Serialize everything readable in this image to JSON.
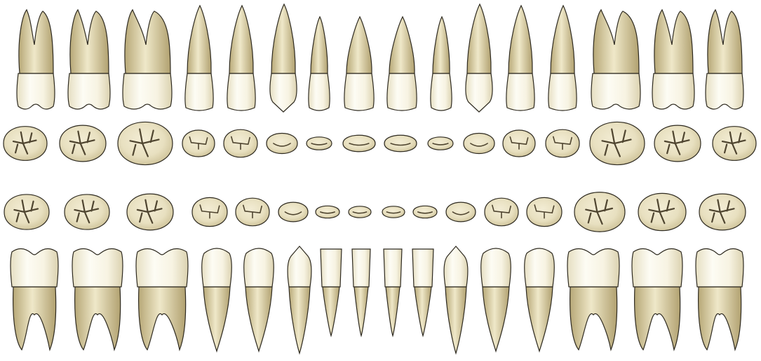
{
  "colors": {
    "background": "#ffffff",
    "enamel_light": "#fdfcf4",
    "enamel_mid": "#f1ecd6",
    "enamel_dark": "#dcd2ad",
    "root_light": "#eee6c6",
    "root_dark": "#b9a97a",
    "outline": "#2e2a20",
    "fissure": "#4f4530"
  },
  "chart_data": {
    "type": "diagram",
    "title": "",
    "rows": [
      {
        "name": "maxillary-buccal",
        "count": 16,
        "teeth": [
          "molar",
          "molar",
          "molar",
          "premolar",
          "premolar",
          "canine",
          "incisor-lateral",
          "incisor-central",
          "incisor-central",
          "incisor-lateral",
          "canine",
          "premolar",
          "premolar",
          "molar",
          "molar",
          "molar"
        ]
      },
      {
        "name": "maxillary-occlusal",
        "count": 16,
        "teeth": [
          "molar",
          "molar",
          "molar",
          "premolar",
          "premolar",
          "canine",
          "incisor",
          "incisor",
          "incisor",
          "incisor",
          "canine",
          "premolar",
          "premolar",
          "molar",
          "molar",
          "molar"
        ]
      },
      {
        "name": "mandibular-occlusal",
        "count": 16,
        "teeth": [
          "molar",
          "molar",
          "molar",
          "premolar",
          "premolar",
          "canine",
          "incisor",
          "incisor",
          "incisor",
          "incisor",
          "canine",
          "premolar",
          "premolar",
          "molar",
          "molar",
          "molar"
        ]
      },
      {
        "name": "mandibular-buccal",
        "count": 16,
        "teeth": [
          "molar",
          "molar",
          "molar",
          "premolar",
          "premolar",
          "canine",
          "incisor",
          "incisor",
          "incisor",
          "incisor",
          "canine",
          "premolar",
          "premolar",
          "molar",
          "molar",
          "molar"
        ]
      }
    ]
  }
}
